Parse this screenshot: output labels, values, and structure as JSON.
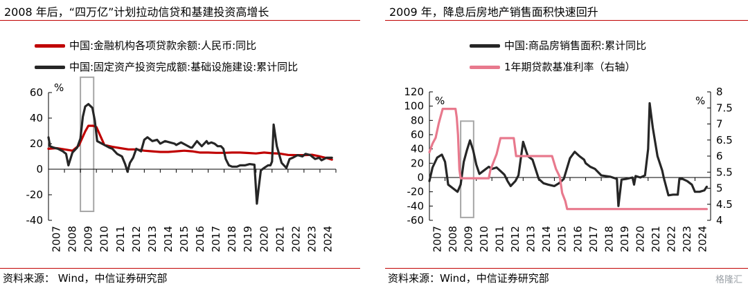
{
  "left": {
    "title": "2008 年后，“四万亿”计划拉动信贷和基建投资高增长",
    "source": "资料来源：  Wind，中信证券研究部",
    "chart_data": {
      "type": "line",
      "unit_label": "%",
      "ylim": [
        -40,
        60
      ],
      "yticks": [
        60,
        40,
        20,
        0,
        -20,
        -40
      ],
      "xlim": [
        2007.0,
        2025.0
      ],
      "xticks": [
        "2007",
        "2008",
        "2009",
        "2010",
        "2011",
        "2012",
        "2013",
        "2014",
        "2015",
        "2016",
        "2017",
        "2018",
        "2019",
        "2020",
        "2021",
        "2022",
        "2023",
        "2024"
      ],
      "highlight_box": {
        "x": [
          2009.0,
          2009.83
        ],
        "y": [
          -33,
          72
        ]
      },
      "series": [
        {
          "name": "中国:金融机构各项贷款余额:人民币:同比",
          "color": "#c00000",
          "x": [
            2007.0,
            2007.5,
            2008.0,
            2008.5,
            2008.9,
            2009.1,
            2009.3,
            2009.5,
            2009.8,
            2010.0,
            2010.5,
            2011.0,
            2011.5,
            2012.0,
            2012.5,
            2013.0,
            2013.5,
            2014.0,
            2014.5,
            2015.0,
            2015.5,
            2016.0,
            2016.5,
            2017.0,
            2017.5,
            2018.0,
            2018.5,
            2019.0,
            2019.5,
            2020.0,
            2020.5,
            2021.0,
            2021.5,
            2022.0,
            2022.5,
            2023.0,
            2023.5,
            2024.0,
            2024.5,
            2024.75
          ],
          "y": [
            16,
            16.5,
            15.5,
            14.5,
            18.5,
            24,
            29.5,
            34,
            34,
            33,
            19,
            17.5,
            16.5,
            15.5,
            15.5,
            14.5,
            14,
            13.5,
            13.5,
            14,
            14.5,
            14,
            13,
            13,
            12.8,
            12.8,
            13,
            13,
            12.7,
            12.3,
            13,
            12.5,
            12.2,
            11.2,
            11,
            11,
            11.3,
            10,
            8.5,
            7.5
          ]
        },
        {
          "name": "中国:固定资产投资完成额:基础设施建设:累计同比",
          "color": "#262626",
          "x": [
            2007.0,
            2007.1,
            2007.3,
            2007.6,
            2007.9,
            2008.1,
            2008.25,
            2008.5,
            2008.8,
            2009.0,
            2009.15,
            2009.3,
            2009.5,
            2009.75,
            2009.9,
            2010.05,
            2010.2,
            2010.5,
            2010.8,
            2011.0,
            2011.3,
            2011.6,
            2011.8,
            2011.95,
            2012.1,
            2012.3,
            2012.5,
            2012.8,
            2013.0,
            2013.2,
            2013.5,
            2013.8,
            2014.0,
            2014.3,
            2014.6,
            2014.9,
            2015.0,
            2015.3,
            2015.6,
            2015.9,
            2016.0,
            2016.3,
            2016.6,
            2016.9,
            2017.0,
            2017.2,
            2017.4,
            2017.6,
            2017.8,
            2017.95,
            2018.1,
            2018.3,
            2018.5,
            2018.8,
            2019.0,
            2019.3,
            2019.6,
            2019.9,
            2020.05,
            2020.15,
            2020.3,
            2020.5,
            2020.75,
            2020.9,
            2021.0,
            2021.1,
            2021.3,
            2021.6,
            2021.9,
            2022.1,
            2022.3,
            2022.6,
            2022.9,
            2023.1,
            2023.4,
            2023.7,
            2023.95,
            2024.1,
            2024.4,
            2024.7,
            2024.75
          ],
          "y": [
            25,
            18,
            17,
            16,
            14,
            12,
            3,
            13,
            17,
            24,
            41,
            49,
            51,
            48,
            38,
            22,
            21,
            19,
            17,
            16,
            12,
            10,
            4,
            -2,
            5,
            9,
            16,
            14,
            23,
            25,
            22,
            23,
            20,
            22,
            21,
            20,
            19,
            21,
            19,
            17,
            17,
            22,
            18,
            22,
            20,
            21,
            20,
            18,
            18,
            16,
            8,
            3,
            2,
            2,
            3,
            3,
            4,
            3.5,
            -27,
            -16,
            -1,
            1,
            3,
            3,
            6,
            35,
            18,
            5,
            1,
            8,
            9,
            11,
            10,
            12,
            11,
            8,
            9,
            7,
            9,
            9,
            9
          ]
        }
      ]
    }
  },
  "right": {
    "title": "2009 年，降息后房地产销售面积快速回升",
    "source": "资料来源：Wind，中信证券研究部",
    "chart_data": {
      "type": "line",
      "unit_label_left": "%",
      "unit_label_right": "%",
      "ylim": [
        -60,
        120
      ],
      "yticks": [
        120,
        100,
        80,
        60,
        40,
        20,
        0,
        -20,
        -40,
        -60
      ],
      "y2lim": [
        4,
        8
      ],
      "y2ticks": [
        8,
        7.5,
        7,
        6.5,
        6,
        5.5,
        5,
        4.5,
        4
      ],
      "xlim": [
        2007.0,
        2025.0
      ],
      "xticks": [
        "2007",
        "2008",
        "2009",
        "2010",
        "2011",
        "2012",
        "2013",
        "2014",
        "2015",
        "2016",
        "2017",
        "2018",
        "2019",
        "2020",
        "2021",
        "2022",
        "2023",
        "2024"
      ],
      "highlight_box": {
        "x": [
          2009.0,
          2009.83
        ],
        "y": [
          -56,
          79
        ]
      },
      "series": [
        {
          "name": "中国:商品房销售面积:累计同比",
          "axis": "left",
          "color": "#262626",
          "x": [
            2007.0,
            2007.2,
            2007.5,
            2007.8,
            2008.0,
            2008.2,
            2008.5,
            2008.8,
            2009.0,
            2009.2,
            2009.4,
            2009.6,
            2009.8,
            2010.0,
            2010.2,
            2010.5,
            2010.8,
            2011.0,
            2011.3,
            2011.6,
            2011.8,
            2012.0,
            2012.2,
            2012.5,
            2012.7,
            2013.0,
            2013.3,
            2013.6,
            2014.0,
            2014.3,
            2014.6,
            2015.0,
            2015.3,
            2015.6,
            2016.0,
            2016.3,
            2016.6,
            2016.9,
            2017.0,
            2017.3,
            2017.6,
            2018.0,
            2018.3,
            2018.6,
            2019.0,
            2019.1,
            2019.3,
            2019.6,
            2020.0,
            2020.1,
            2020.2,
            2020.5,
            2020.8,
            2021.0,
            2021.1,
            2021.3,
            2021.6,
            2021.9,
            2022.0,
            2022.3,
            2022.6,
            2022.9,
            2023.0,
            2023.2,
            2023.5,
            2023.8,
            2024.0,
            2024.3,
            2024.6,
            2024.75
          ],
          "y": [
            -5,
            14,
            28,
            32,
            22,
            -10,
            -15,
            -20,
            -10,
            22,
            38,
            52,
            38,
            18,
            5,
            10,
            15,
            12,
            14,
            8,
            4,
            -5,
            -12,
            -5,
            3,
            50,
            30,
            25,
            -2,
            -8,
            -10,
            -12,
            -8,
            -2,
            27,
            36,
            30,
            25,
            20,
            15,
            12,
            3,
            2,
            1,
            -2,
            -40,
            -3,
            -2,
            0,
            -10,
            2,
            0,
            3,
            40,
            104,
            70,
            30,
            10,
            0,
            -25,
            -24,
            -24,
            -2,
            -2,
            -5,
            -10,
            -20,
            -20,
            -18,
            -13
          ]
        },
        {
          "name": "1年期贷款基准利率（右轴）",
          "axis": "right",
          "color": "#e8798d",
          "x": [
            2007.0,
            2007.2,
            2007.4,
            2007.6,
            2007.85,
            2008.67,
            2008.75,
            2008.83,
            2008.92,
            2009.0,
            2010.8,
            2010.9,
            2011.1,
            2011.3,
            2011.55,
            2012.4,
            2012.55,
            2014.85,
            2015.1,
            2015.35,
            2015.5,
            2015.7,
            2015.82,
            2024.75
          ],
          "y": [
            6.12,
            6.39,
            6.57,
            7.02,
            7.47,
            7.47,
            7.2,
            6.66,
            5.58,
            5.31,
            5.31,
            5.56,
            5.81,
            6.06,
            6.56,
            6.56,
            6.0,
            6.0,
            5.6,
            5.35,
            4.85,
            4.6,
            4.35,
            4.35
          ]
        }
      ]
    }
  },
  "watermark": "格隆汇"
}
